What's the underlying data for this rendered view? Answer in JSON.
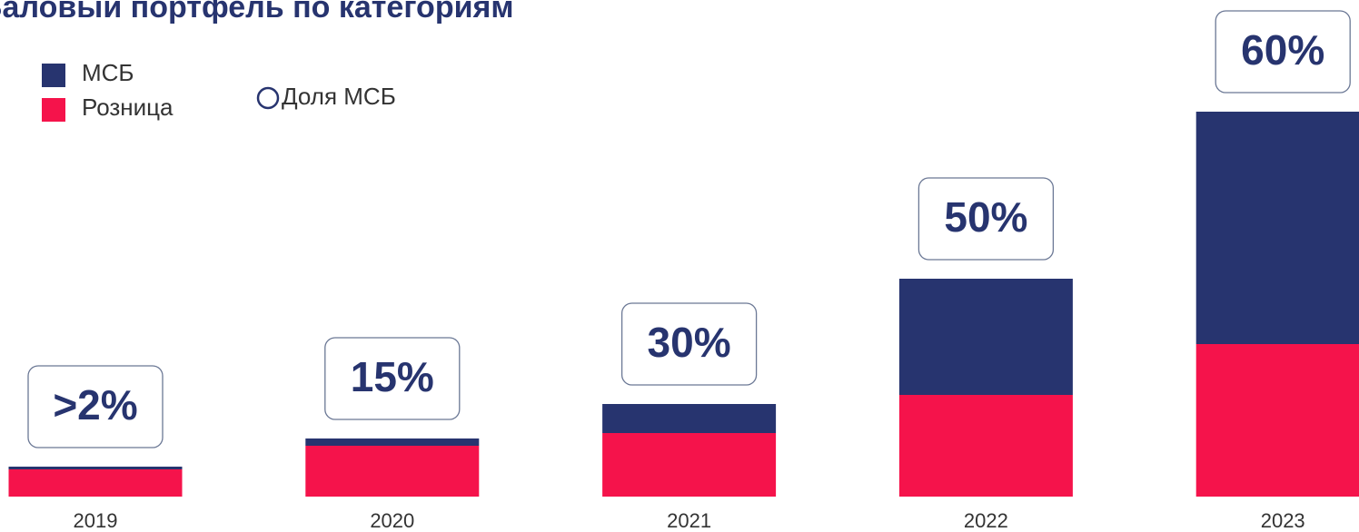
{
  "chart_data": {
    "type": "stacked_bar",
    "title": "Валовый портфель по категориям",
    "categories": [
      "2019",
      "2020",
      "2021",
      "2022",
      "2023"
    ],
    "series": [
      {
        "name": "Розница",
        "color": "#f5134b",
        "values": [
          30,
          56,
          70,
          112,
          168
        ]
      },
      {
        "name": "МСБ",
        "color": "#27346f",
        "values": [
          3,
          8,
          32,
          128,
          256
        ]
      }
    ],
    "share": {
      "name": "Доля МСБ",
      "color": "#27346f",
      "values": [
        2,
        15,
        30,
        50,
        60
      ],
      "value_labels": [
        ">2%",
        "15%",
        "30%",
        "50%",
        "60%"
      ]
    },
    "ylim": [
      0,
      430
    ]
  }
}
